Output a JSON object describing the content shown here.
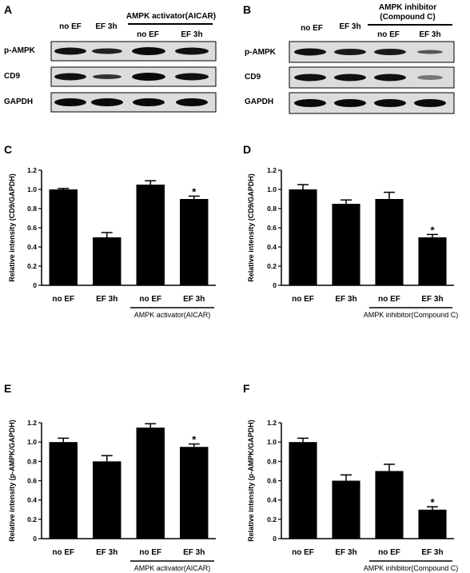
{
  "blotA": {
    "label": "A",
    "header_no_ef": "no EF",
    "header_ef3h": "EF 3h",
    "group_title": "AMPK activator(AICAR)",
    "sub_no_ef": "no EF",
    "sub_ef3h": "EF 3h",
    "rows": [
      "p-AMPK",
      "CD9",
      "GAPDH"
    ]
  },
  "blotB": {
    "label": "B",
    "header_no_ef": "no EF",
    "header_ef3h": "EF 3h",
    "group_title_1": "AMPK inhibitor",
    "group_title_2": "(Compound C)",
    "sub_no_ef": "no EF",
    "sub_ef3h": "EF 3h",
    "rows": [
      "p-AMPK",
      "CD9",
      "GAPDH"
    ]
  },
  "chart_data": [
    {
      "panel": "C",
      "type": "bar",
      "categories": [
        "no EF",
        "EF 3h",
        "no EF",
        "EF 3h"
      ],
      "values": [
        1.0,
        0.5,
        1.05,
        0.9
      ],
      "errors": [
        0.01,
        0.05,
        0.04,
        0.03
      ],
      "significance": [
        "",
        "",
        "",
        "*"
      ],
      "ylabel": "Relative intensity (CD9/GAPDH)",
      "group_label": "AMPK activator(AICAR)",
      "ylim": [
        0,
        1.2
      ],
      "yticks": [
        "0",
        "0.2",
        "0.4",
        "0.6",
        "0.8",
        "1.0",
        "1.2"
      ]
    },
    {
      "panel": "D",
      "type": "bar",
      "categories": [
        "no EF",
        "EF 3h",
        "no EF",
        "EF 3h"
      ],
      "values": [
        1.0,
        0.85,
        0.9,
        0.5
      ],
      "errors": [
        0.05,
        0.04,
        0.07,
        0.03
      ],
      "significance": [
        "",
        "",
        "",
        "*"
      ],
      "ylabel": "Relative intensity (CD9/GAPDH)",
      "group_label": "AMPK inhibitor(Compound C)",
      "ylim": [
        0,
        1.2
      ],
      "yticks": [
        "0",
        "0.2",
        "0.4",
        "0.6",
        "0.8",
        "1.0",
        "1.2"
      ]
    },
    {
      "panel": "E",
      "type": "bar",
      "categories": [
        "no EF",
        "EF 3h",
        "no EF",
        "EF 3h"
      ],
      "values": [
        1.0,
        0.8,
        1.15,
        0.95
      ],
      "errors": [
        0.04,
        0.06,
        0.04,
        0.03
      ],
      "significance": [
        "",
        "",
        "",
        "*"
      ],
      "ylabel": "Relative intensity (p-AMPK/GAPDH)",
      "group_label": "AMPK activator(AICAR)",
      "ylim": [
        0,
        1.2
      ],
      "yticks": [
        "0",
        "0.2",
        "0.4",
        "0.6",
        "0.8",
        "1.0",
        "1.2"
      ]
    },
    {
      "panel": "F",
      "type": "bar",
      "categories": [
        "no EF",
        "EF 3h",
        "no EF",
        "EF 3h"
      ],
      "values": [
        1.0,
        0.6,
        0.7,
        0.3
      ],
      "errors": [
        0.04,
        0.06,
        0.07,
        0.03
      ],
      "significance": [
        "",
        "",
        "",
        "*"
      ],
      "ylabel": "Relative intensity (p-AMPK/GAPDH)",
      "group_label": "AMPK inhibitor(Compound C)",
      "ylim": [
        0,
        1.2
      ],
      "yticks": [
        "0",
        "0.2",
        "0.4",
        "0.6",
        "0.8",
        "1.0",
        "1.2"
      ]
    }
  ]
}
